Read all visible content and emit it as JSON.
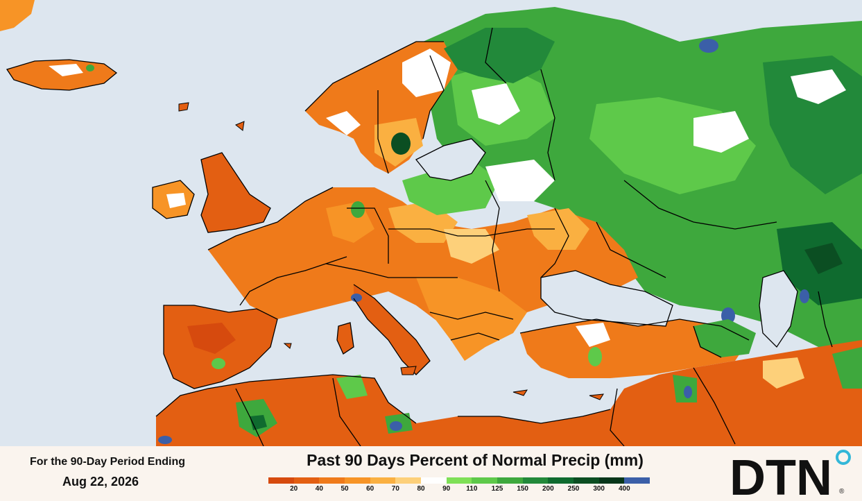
{
  "period_label": "For the 90-Day Period Ending",
  "period_date": "Aug 22, 2026",
  "legend": {
    "title": "Past 90 Days Percent of Normal Precip (mm)",
    "tick_labels": [
      "20",
      "40",
      "50",
      "60",
      "70",
      "80",
      "90",
      "110",
      "125",
      "150",
      "200",
      "250",
      "300",
      "400"
    ],
    "colors": [
      "#d64a0e",
      "#e35f12",
      "#ef7a1a",
      "#f79426",
      "#fab041",
      "#fdd07a",
      "#ffffff",
      "#7fe057",
      "#5ec94a",
      "#3ea83d",
      "#22893a",
      "#0f6b2f",
      "#0b4e22",
      "#07361a",
      "#3b5fa8"
    ]
  },
  "logo": {
    "text": "DTN",
    "registered_mark": "®",
    "accent_color": "#33b7d8"
  },
  "map_colors": {
    "sea": "#dde6ef",
    "border": "#000000",
    "very_dry": "#d8561a",
    "dry": "#ef7a1a",
    "moderate_dry": "#f9a84a",
    "near_normal": "#ffffff",
    "wet": "#5ec94a",
    "very_wet": "#2f8a3a",
    "extreme_wet": "#0b4e22",
    "max": "#3b5fa8"
  }
}
